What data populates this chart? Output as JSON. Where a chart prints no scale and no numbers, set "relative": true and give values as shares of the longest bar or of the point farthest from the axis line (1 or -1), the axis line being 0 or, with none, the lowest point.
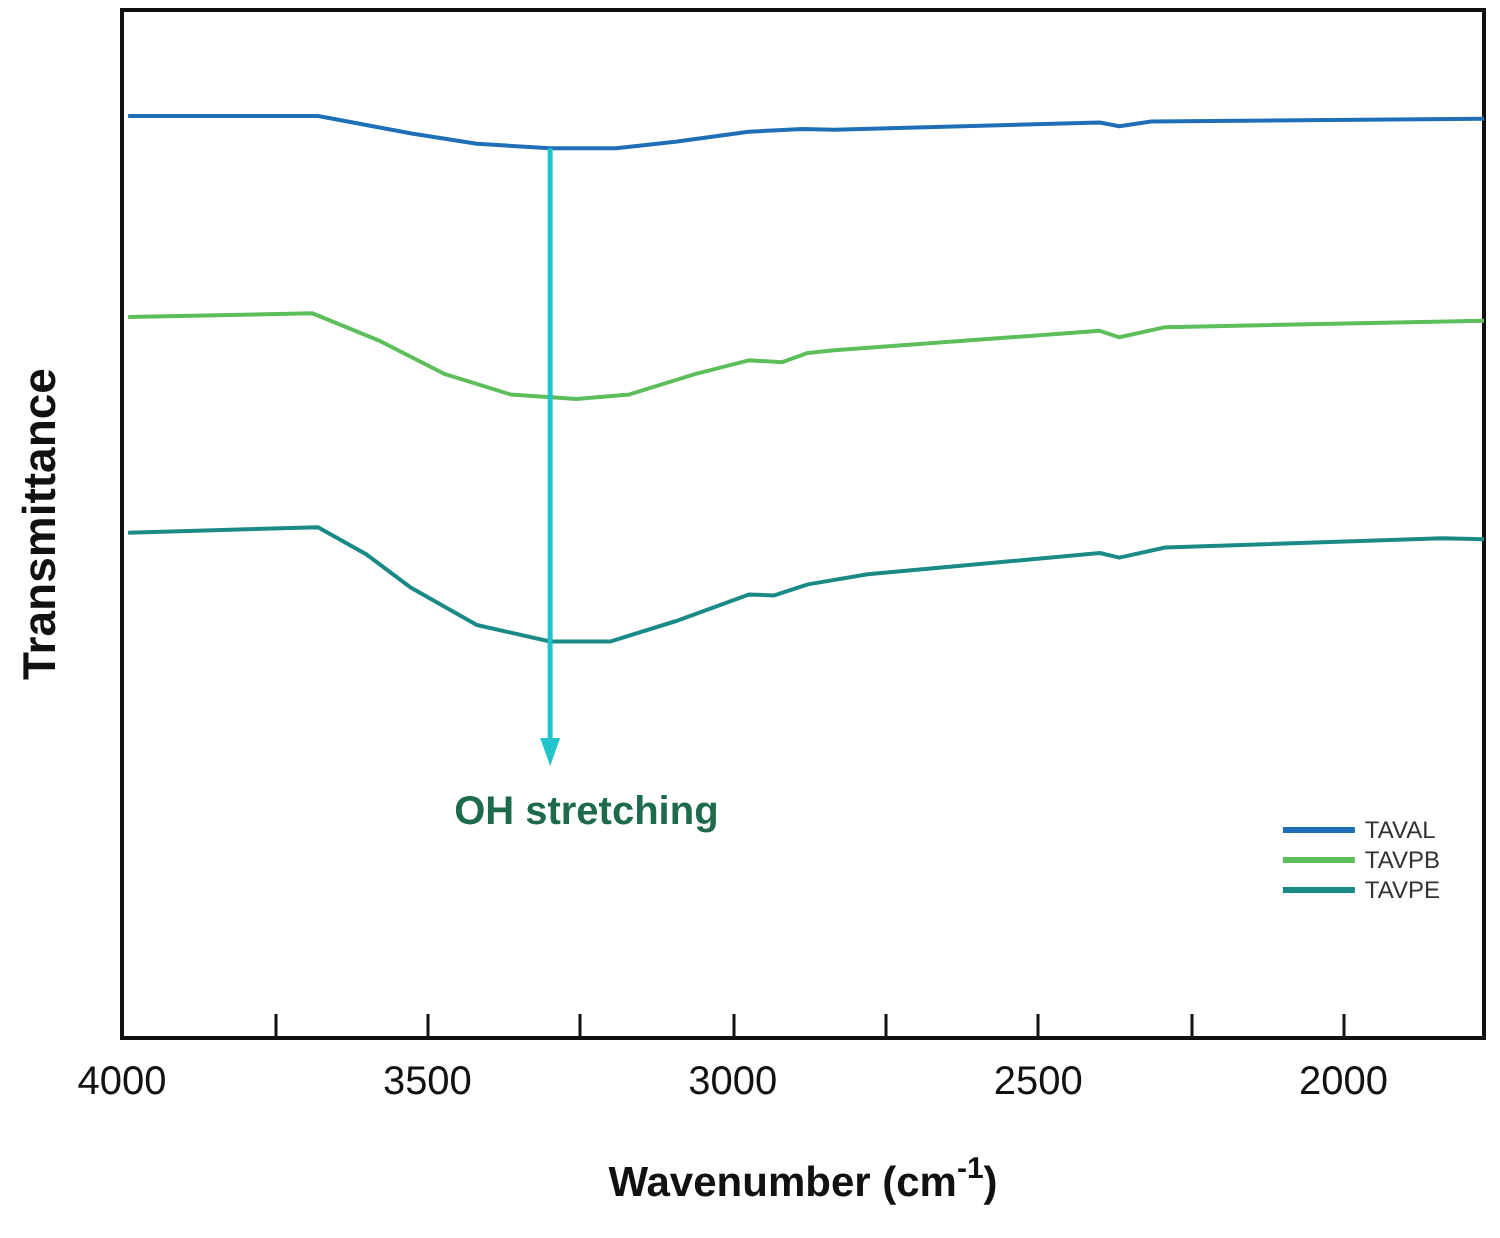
{
  "chart_data": {
    "type": "line",
    "relative": true,
    "xlabel": "Wavenumber (cm$^{-1}$)",
    "ylabel": "Transmittance",
    "xlim": [
      4000,
      1770
    ],
    "xticks": [
      4000,
      {
        "value": 3750,
        "label": null
      },
      3500,
      {
        "value": 3250,
        "label": null
      },
      3000,
      {
        "value": 2750,
        "label": null
      },
      2500,
      {
        "value": 2250,
        "label": null
      },
      2000
    ],
    "legend": "bottom right",
    "grid": false,
    "marker": "none",
    "line_style": "solid",
    "annotations": [
      "OH stretching"
    ],
    "series": [
      {
        "name": "TAVAL",
        "color": "#1f6fb8",
        "x": [
          3990,
          3679,
          3646,
          3526,
          3419,
          3299,
          3191,
          3094,
          2974,
          2886,
          2834,
          2399,
          2367,
          2315,
          1770
        ],
        "values": [
          1.0,
          1.0,
          0.996,
          0.981,
          0.97,
          0.965,
          0.965,
          0.972,
          0.983,
          0.986,
          0.985,
          0.993,
          0.989,
          0.994,
          0.997
        ]
      },
      {
        "name": "TAVPB",
        "color": "#5cbf5c",
        "x": [
          3990,
          3688,
          3581,
          3471,
          3364,
          3256,
          3169,
          3062,
          2974,
          2919,
          2877,
          2834,
          2399,
          2367,
          2292,
          1770
        ],
        "values": [
          0.782,
          0.786,
          0.757,
          0.72,
          0.698,
          0.693,
          0.698,
          0.72,
          0.735,
          0.733,
          0.743,
          0.746,
          0.767,
          0.76,
          0.771,
          0.778
        ]
      },
      {
        "name": "TAVPE",
        "color": "#1a8a86",
        "x": [
          3990,
          3679,
          3601,
          3526,
          3419,
          3299,
          3201,
          3094,
          2974,
          2932,
          2877,
          2779,
          2399,
          2367,
          2292,
          1838,
          1770
        ],
        "values": [
          0.548,
          0.554,
          0.525,
          0.488,
          0.448,
          0.43,
          0.43,
          0.452,
          0.481,
          0.48,
          0.492,
          0.503,
          0.526,
          0.521,
          0.532,
          0.542,
          0.541
        ]
      }
    ]
  }
}
